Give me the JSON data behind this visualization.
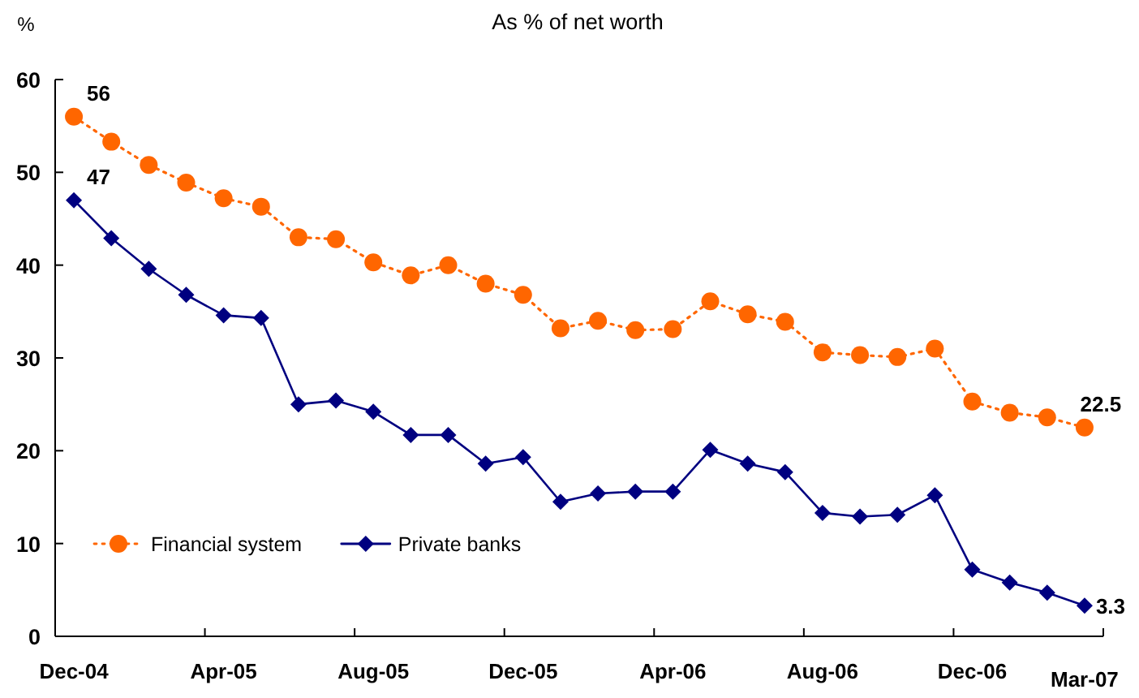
{
  "chart_data": {
    "type": "line",
    "title": "As % of net worth",
    "ylabel": "%",
    "categories": [
      "Dec-04",
      null,
      null,
      null,
      "Apr-05",
      null,
      null,
      null,
      "Aug-05",
      null,
      null,
      null,
      "Dec-05",
      null,
      null,
      null,
      "Apr-06",
      null,
      null,
      null,
      "Aug-06",
      null,
      null,
      null,
      "Dec-06",
      null,
      null,
      "Mar-07"
    ],
    "series": [
      {
        "name": "Financial system",
        "color": "#ff6600",
        "marker": "circle",
        "line_style": "dotted",
        "values": [
          56,
          53.3,
          50.8,
          48.9,
          47.2,
          46.3,
          43.0,
          42.8,
          40.3,
          38.9,
          40.0,
          38.0,
          36.8,
          33.2,
          34.0,
          33.0,
          33.1,
          36.1,
          34.7,
          33.9,
          30.6,
          30.3,
          30.1,
          31.0,
          25.3,
          24.1,
          23.6,
          22.5
        ],
        "value_labels": [
          "56",
          null,
          null,
          null,
          null,
          null,
          null,
          null,
          null,
          null,
          null,
          null,
          null,
          null,
          null,
          null,
          null,
          null,
          null,
          null,
          null,
          null,
          null,
          null,
          null,
          null,
          null,
          "22.5"
        ]
      },
      {
        "name": "Private banks",
        "color": "#000080",
        "marker": "diamond",
        "line_style": "solid",
        "values": [
          47,
          42.9,
          39.6,
          36.8,
          34.6,
          34.3,
          25.0,
          25.4,
          24.2,
          21.7,
          21.7,
          18.6,
          19.3,
          14.5,
          15.4,
          15.6,
          15.6,
          20.1,
          18.6,
          17.7,
          13.3,
          12.9,
          13.1,
          15.2,
          7.2,
          5.8,
          4.7,
          3.3
        ],
        "value_labels": [
          "47",
          null,
          null,
          null,
          null,
          null,
          null,
          null,
          null,
          null,
          null,
          null,
          null,
          null,
          null,
          null,
          null,
          null,
          null,
          null,
          null,
          null,
          null,
          null,
          null,
          null,
          null,
          "3.3"
        ]
      }
    ],
    "ylim": [
      0,
      60
    ],
    "yticks": [
      0,
      10,
      20,
      30,
      40,
      50,
      60
    ],
    "legend": "bottom left"
  }
}
